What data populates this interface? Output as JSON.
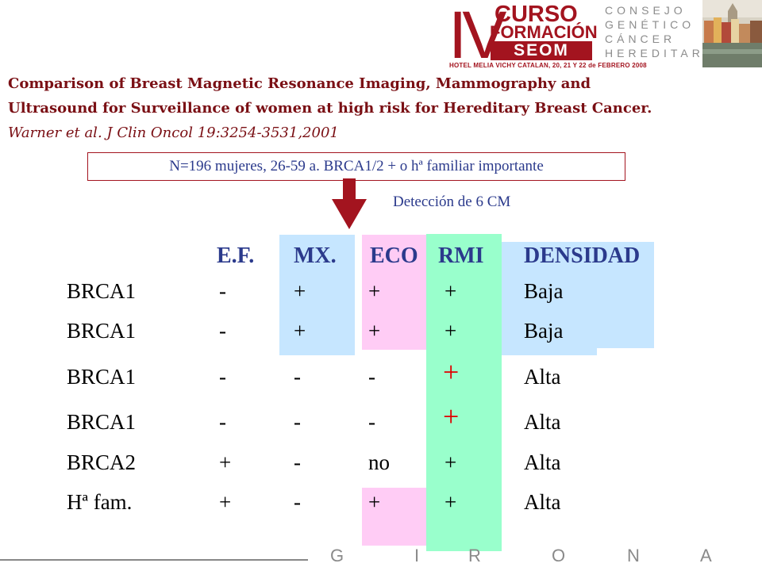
{
  "logo": {
    "roman": "IV",
    "line1": "CURSO",
    "line2": "FORMACIÓN",
    "line3": "SEOM",
    "hotel": "HOTEL MELIA VICHY CATALAN, 20, 21 Y 22 de FEBRERO 2008",
    "consejo": [
      "CONSEJO",
      "GENÉTICO",
      "CÁNCER",
      "HEREDITARIO"
    ]
  },
  "title": {
    "bold": "Comparison of Breast Magnetic Resonance Imaging, Mammography and Ultrasound for Surveillance of women at high risk for Hereditary Breast Cancer.",
    "ref": "Warner et al.  J Clin Oncol 19:3254-3531,2001"
  },
  "cohort": "N=196 mujeres, 26-59 a. BRCA1/2 + o hª familiar importante",
  "detection": "Detección de 6 CM",
  "table": {
    "headers": [
      "E.F.",
      "MX.",
      "ECO",
      "RMI",
      "DENSIDAD"
    ],
    "rows": [
      {
        "label": "BRCA1",
        "ef": "-",
        "mx": "+",
        "eco": "+",
        "rmi": "+",
        "dens": "Baja"
      },
      {
        "label": "BRCA1",
        "ef": "-",
        "mx": "+",
        "eco": "+",
        "rmi": "+",
        "dens": "Baja"
      },
      {
        "label": "BRCA1",
        "ef": "-",
        "mx": "-",
        "eco": "-",
        "rmi": "+",
        "dens": "Alta"
      },
      {
        "label": "BRCA1",
        "ef": "-",
        "mx": "-",
        "eco": "-",
        "rmi": "+",
        "dens": "Alta"
      },
      {
        "label": "BRCA2",
        "ef": "+",
        "mx": "-",
        "eco": "no",
        "rmi": "+",
        "dens": "Alta"
      },
      {
        "label": "Hª fam.",
        "ef": "+",
        "mx": "-",
        "eco": "+",
        "rmi": "+",
        "dens": "Alta"
      }
    ]
  },
  "colors": {
    "blue_panel": "#c6e6ff",
    "pink_panel": "#ffccf5",
    "green_panel": "#99ffcc",
    "title": "#7a0f14",
    "header_text": "#2b3a8c",
    "accent_red": "#e00000",
    "logo_red": "#a3141f"
  },
  "footer": {
    "letters": [
      "G",
      "I",
      "R",
      "O",
      "N",
      "A"
    ]
  }
}
